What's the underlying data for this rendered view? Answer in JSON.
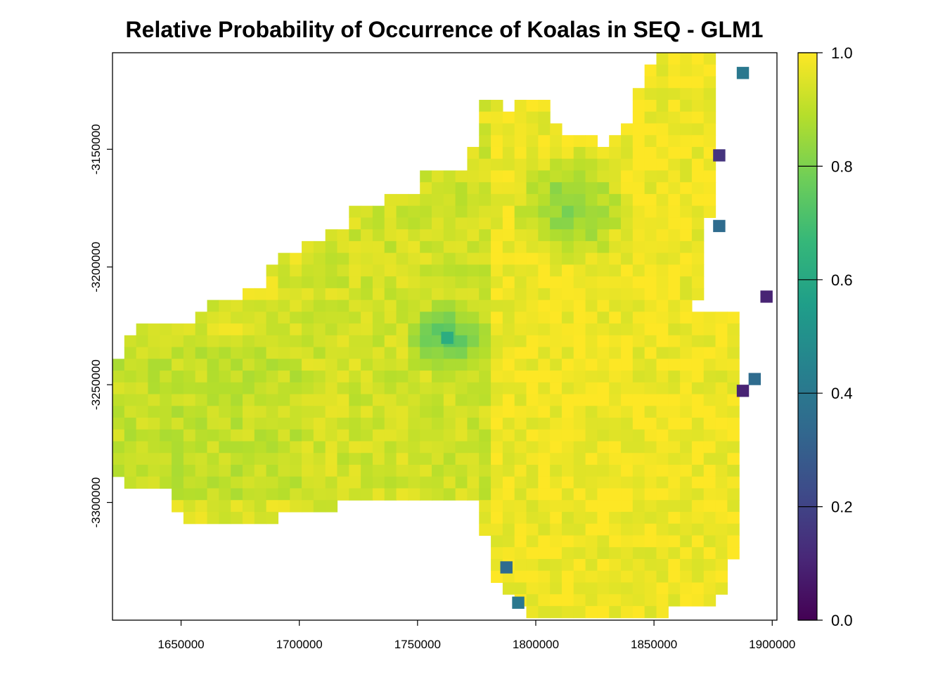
{
  "chart_data": {
    "type": "heatmap",
    "title": "Relative Probability of Occurrence of Koalas in SEQ - GLM1",
    "xlabel": "",
    "ylabel": "",
    "xlim": [
      1621000,
      1902000
    ],
    "ylim": [
      -3350000,
      -3109000
    ],
    "x_ticks": [
      1650000,
      1700000,
      1750000,
      1800000,
      1850000,
      1900000
    ],
    "y_ticks": [
      -3150000,
      -3200000,
      -3250000,
      -3300000
    ],
    "x_tick_labels": [
      "1650000",
      "1700000",
      "1750000",
      "1800000",
      "1850000",
      "1900000"
    ],
    "y_tick_labels": [
      "-3150000",
      "-3200000",
      "-3250000",
      "-3300000"
    ],
    "colorbar": {
      "range": [
        0.0,
        1.0
      ],
      "ticks": [
        0.0,
        0.2,
        0.4,
        0.6,
        0.8,
        1.0
      ],
      "tick_labels": [
        "0.0",
        "0.2",
        "0.4",
        "0.6",
        "0.8",
        "1.0"
      ],
      "colormap": "viridis"
    },
    "grid": false,
    "legend_position": "right",
    "cell_size_m": 5000,
    "region_summary": {
      "description": "Raster of predicted relative probability; values mostly 0.85-1.0 across the mainland, lower values (~0.2-0.6) at scattered coastal/island cells",
      "zones": [
        {
          "x": [
            1621000,
            1700000
          ],
          "y": [
            -3300000,
            -3230000
          ],
          "value": 0.91
        },
        {
          "x": [
            1700000,
            1780000
          ],
          "y": [
            -3300000,
            -3150000
          ],
          "value": 0.93
        },
        {
          "x": [
            1780000,
            1885000
          ],
          "y": [
            -3350000,
            -3110000
          ],
          "value": 0.98
        }
      ],
      "low_cells": [
        {
          "x": 1762500,
          "y": -3230000,
          "value": 0.62
        },
        {
          "x": 1877500,
          "y": -3152500,
          "value": 0.15
        },
        {
          "x": 1877500,
          "y": -3182500,
          "value": 0.35
        },
        {
          "x": 1887500,
          "y": -3117500,
          "value": 0.4
        },
        {
          "x": 1897500,
          "y": -3212500,
          "value": 0.1
        },
        {
          "x": 1887500,
          "y": -3252500,
          "value": 0.1
        },
        {
          "x": 1892500,
          "y": -3247500,
          "value": 0.35
        },
        {
          "x": 1787500,
          "y": -3327500,
          "value": 0.35
        },
        {
          "x": 1792500,
          "y": -3342500,
          "value": 0.4
        }
      ]
    }
  },
  "palette": {
    "viridis": [
      "#440154",
      "#482878",
      "#3e4a89",
      "#31688e",
      "#26828e",
      "#1f9e89",
      "#35b779",
      "#6ece58",
      "#b5de2b",
      "#fde725"
    ]
  }
}
